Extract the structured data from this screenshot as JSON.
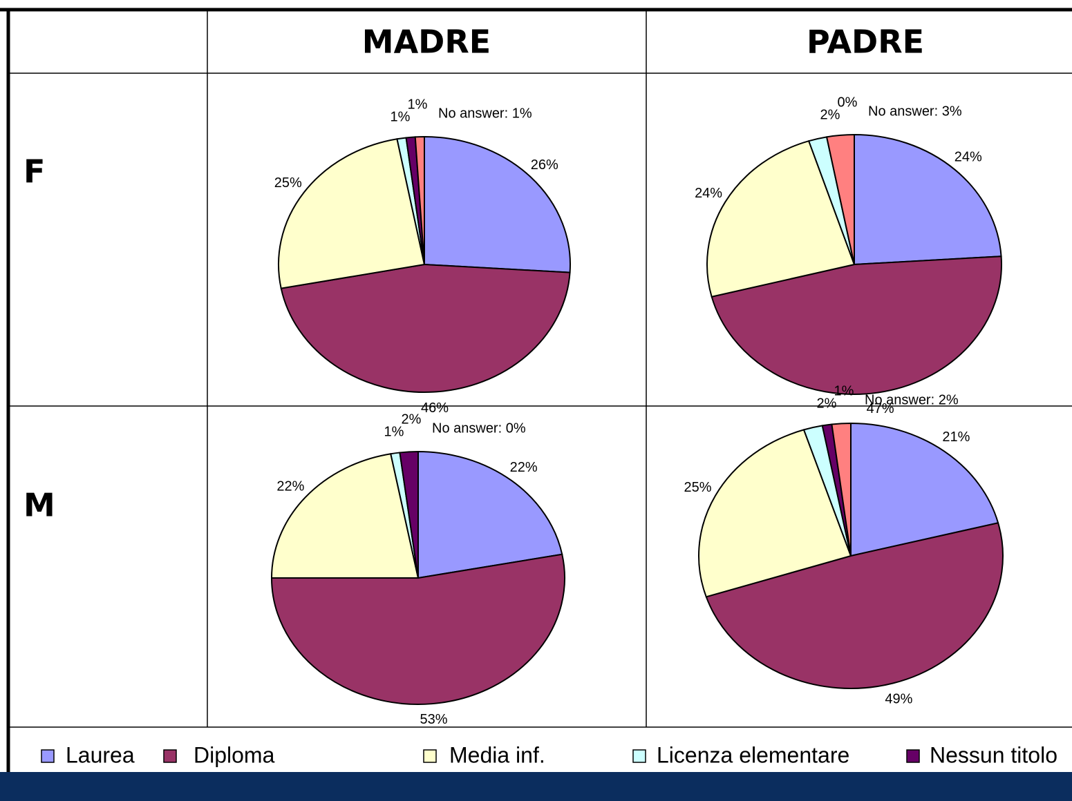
{
  "table": {
    "columns": [
      "MADRE",
      "PADRE"
    ],
    "rows": [
      "F",
      "M"
    ]
  },
  "chart_data": [
    {
      "type": "pie",
      "categories": [
        "Laurea",
        "Diploma",
        "Media inf.",
        "Licenza elementare",
        "Nessun titolo",
        "No answer"
      ],
      "colors": [
        "#9999ff",
        "#993366",
        "#ffffcc",
        "#ccffff",
        "#660066",
        "#ff8080"
      ],
      "values": [
        26,
        46,
        25,
        1,
        1,
        1
      ],
      "value_labels": [
        "26%",
        "46%",
        "25%",
        "1%",
        "1%",
        "No answer: 1%"
      ]
    },
    {
      "type": "pie",
      "categories": [
        "Laurea",
        "Diploma",
        "Media inf.",
        "Licenza elementare",
        "Nessun titolo",
        "No answer"
      ],
      "colors": [
        "#9999ff",
        "#993366",
        "#ffffcc",
        "#ccffff",
        "#660066",
        "#ff8080"
      ],
      "values": [
        24,
        47,
        24,
        2,
        0,
        3
      ],
      "value_labels": [
        "24%",
        "47%",
        "24%",
        "2%",
        "0%",
        "No answer: 3%"
      ]
    },
    {
      "type": "pie",
      "categories": [
        "Laurea",
        "Diploma",
        "Media inf.",
        "Licenza elementare",
        "Nessun titolo",
        "No answer"
      ],
      "colors": [
        "#9999ff",
        "#993366",
        "#ffffcc",
        "#ccffff",
        "#660066",
        "#ff8080"
      ],
      "values": [
        22,
        53,
        22,
        1,
        2,
        0
      ],
      "value_labels": [
        "22%",
        "53%",
        "22%",
        "1%",
        "2%",
        "No answer: 0%"
      ]
    },
    {
      "type": "pie",
      "categories": [
        "Laurea",
        "Diploma",
        "Media inf.",
        "Licenza elementare",
        "Nessun titolo",
        "No answer"
      ],
      "colors": [
        "#9999ff",
        "#993366",
        "#ffffcc",
        "#ccffff",
        "#660066",
        "#ff8080"
      ],
      "values": [
        21,
        49,
        25,
        2,
        1,
        2
      ],
      "value_labels": [
        "21%",
        "49%",
        "25%",
        "2%",
        "1%",
        "No answer: 2%"
      ]
    }
  ]
}
